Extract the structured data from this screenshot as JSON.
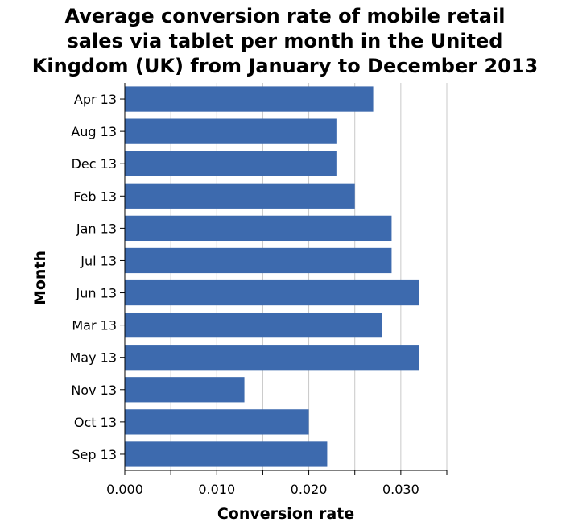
{
  "chart_data": {
    "type": "bar",
    "orientation": "horizontal",
    "title_lines": [
      "Average conversion rate of mobile retail",
      "sales via tablet per month in the United",
      "Kingdom (UK) from January to December 2013"
    ],
    "xlabel": "Conversion rate",
    "ylabel": "Month",
    "categories": [
      "Apr 13",
      "Aug 13",
      "Dec 13",
      "Feb 13",
      "Jan 13",
      "Jul 13",
      "Jun 13",
      "Mar 13",
      "May 13",
      "Nov 13",
      "Oct 13",
      "Sep 13"
    ],
    "values": [
      0.027,
      0.023,
      0.023,
      0.025,
      0.029,
      0.029,
      0.032,
      0.028,
      0.032,
      0.013,
      0.02,
      0.022
    ],
    "xlim": [
      0,
      0.035
    ],
    "xticks": [
      0.0,
      0.005,
      0.01,
      0.015,
      0.02,
      0.025,
      0.03,
      0.035
    ],
    "xtick_labels": [
      "0.000",
      "",
      "0.010",
      "",
      "0.020",
      "",
      "0.030",
      ""
    ],
    "grid": true,
    "bar_color": "#3d6aae",
    "grid_color": "#c8c8c8"
  }
}
